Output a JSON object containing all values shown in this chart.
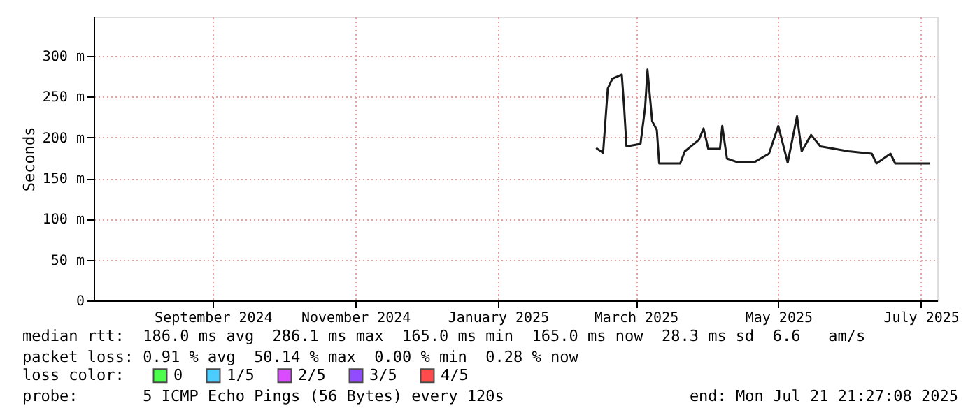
{
  "chart_data": {
    "type": "line",
    "ylabel": "Seconds",
    "xlim": [
      "2024-07-26",
      "2025-07-22"
    ],
    "xticks": [
      {
        "value": "2024-09-15",
        "label": "September 2024"
      },
      {
        "value": "2024-11-15",
        "label": "November 2024"
      },
      {
        "value": "2025-01-15",
        "label": "January 2025"
      },
      {
        "value": "2025-03-15",
        "label": "March 2025"
      },
      {
        "value": "2025-05-15",
        "label": "May 2025"
      },
      {
        "value": "2025-07-15",
        "label": "July 2025"
      }
    ],
    "ylim": [
      0,
      348
    ],
    "yticks": [
      0,
      {
        "value": 50,
        "label": "50 m"
      },
      {
        "value": 100,
        "label": "100 m"
      },
      {
        "value": 150,
        "label": "150 m"
      },
      {
        "value": 200,
        "label": "200 m"
      },
      {
        "value": 250,
        "label": "250 m"
      },
      {
        "value": 300,
        "label": "300 m"
      }
    ],
    "x": [
      "2025-02-26",
      "2025-03-01",
      "2025-03-03",
      "2025-03-05",
      "2025-03-09",
      "2025-03-10",
      "2025-03-11",
      "2025-03-17",
      "2025-03-19",
      "2025-03-20",
      "2025-03-22",
      "2025-03-24",
      "2025-03-25",
      "2025-04-03",
      "2025-04-05",
      "2025-04-11",
      "2025-04-13",
      "2025-04-15",
      "2025-04-20",
      "2025-04-21",
      "2025-04-23",
      "2025-04-27",
      "2025-05-05",
      "2025-05-11",
      "2025-05-15",
      "2025-05-19",
      "2025-05-23",
      "2025-05-25",
      "2025-05-29",
      "2025-06-02",
      "2025-06-14",
      "2025-06-24",
      "2025-06-26",
      "2025-07-02",
      "2025-07-04",
      "2025-07-19"
    ],
    "series": [
      {
        "color": "#1a1a1a",
        "values": [
          187,
          181,
          260,
          272,
          277,
          237,
          189,
          192,
          237,
          283,
          220,
          209,
          168,
          168,
          183,
          197,
          211,
          186,
          186,
          214,
          174,
          170,
          170,
          180,
          214,
          169,
          226,
          183,
          203,
          189,
          183,
          180,
          168,
          180,
          168,
          168
        ]
      },
      {
        "name": "0",
        "color": "#00ff00",
        "values": [
          null,
          null,
          null,
          null,
          null,
          null,
          null,
          null,
          null,
          null,
          null,
          null,
          null,
          null,
          null,
          null,
          null,
          null,
          null,
          null,
          null,
          null,
          null,
          null,
          null,
          null,
          null,
          null,
          null,
          null,
          null,
          null,
          null,
          null,
          null,
          null
        ]
      },
      {
        "name": "1/5",
        "color": "#00b8ff",
        "values": [
          null,
          null,
          null,
          null,
          null,
          null,
          null,
          null,
          null,
          null,
          null,
          null,
          null,
          null,
          null,
          null,
          null,
          null,
          null,
          null,
          null,
          null,
          null,
          null,
          null,
          null,
          null,
          null,
          null,
          null,
          null,
          null,
          null,
          null,
          null,
          null
        ]
      },
      {
        "name": "2/5",
        "color": "#cc00ff",
        "values": [
          null,
          null,
          null,
          null,
          null,
          null,
          null,
          null,
          null,
          null,
          null,
          null,
          null,
          null,
          null,
          null,
          null,
          null,
          null,
          null,
          null,
          null,
          null,
          null,
          null,
          null,
          null,
          null,
          null,
          null,
          null,
          null,
          null,
          null,
          null,
          null
        ]
      },
      {
        "name": "3/5",
        "color": "#6600ff",
        "values": [
          null,
          null,
          null,
          null,
          null,
          null,
          null,
          null,
          null,
          null,
          null,
          null,
          null,
          null,
          null,
          null,
          null,
          null,
          null,
          null,
          null,
          null,
          null,
          null,
          null,
          null,
          null,
          null,
          null,
          null,
          null,
          null,
          null,
          null,
          null,
          null
        ]
      },
      {
        "name": "4/5",
        "color": "#ff0000",
        "values": [
          null,
          null,
          null,
          null,
          null,
          null,
          null,
          null,
          null,
          null,
          null,
          null,
          null,
          null,
          null,
          null,
          null,
          null,
          null,
          null,
          null,
          null,
          null,
          null,
          null,
          null,
          null,
          null,
          null,
          null,
          null,
          null,
          null,
          null,
          null,
          null
        ]
      }
    ],
    "legend_title": "loss color:",
    "legend": "bottom",
    "grid": true,
    "annotations": [
      "median rtt:  186.0 ms avg  286.1 ms max  165.0 ms min  165.0 ms now  28.3 ms sd  6.6   am/s",
      "packet loss: 0.91 % avg  50.14 % max  0.00 % min  0.28 % now",
      "probe:       5 ICMP Echo Pings (56 Bytes) every 120s",
      "end: Mon Jul 21 21:27:08 2025"
    ]
  }
}
